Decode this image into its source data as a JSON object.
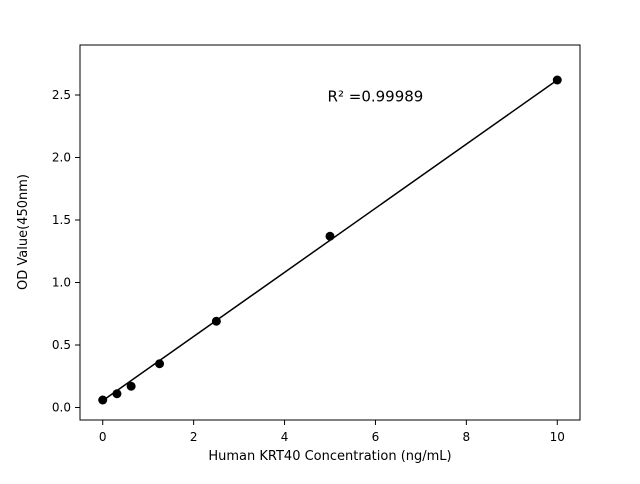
{
  "page": {
    "background": "#ffffff"
  },
  "chart_data": {
    "type": "scatter",
    "title": "",
    "xlabel": "Human KRT40 Concentration (ng/mL)",
    "ylabel": "OD Value(450nm)",
    "annotation": {
      "text": "R² =0.99989",
      "x": 6.0,
      "y": 2.45
    },
    "x": [
      0,
      0.313,
      0.625,
      1.25,
      2.5,
      5,
      10
    ],
    "y": [
      0.06,
      0.11,
      0.17,
      0.35,
      0.69,
      1.37,
      2.62
    ],
    "fit_line": {
      "x": [
        0,
        10
      ],
      "y": [
        0.055,
        2.62
      ]
    },
    "xlim": [
      -0.5,
      10.5
    ],
    "ylim": [
      -0.1,
      2.9
    ],
    "x_ticks": [
      {
        "value": 0,
        "label": "0"
      },
      {
        "value": 2,
        "label": "2"
      },
      {
        "value": 4,
        "label": "4"
      },
      {
        "value": 6,
        "label": "6"
      },
      {
        "value": 8,
        "label": "8"
      },
      {
        "value": 10,
        "label": "10"
      }
    ],
    "y_ticks": [
      {
        "value": 0.0,
        "label": "0.0"
      },
      {
        "value": 0.5,
        "label": "0.5"
      },
      {
        "value": 1.0,
        "label": "1.0"
      },
      {
        "value": 1.5,
        "label": "1.5"
      },
      {
        "value": 2.0,
        "label": "2.0"
      },
      {
        "value": 2.5,
        "label": "2.5"
      }
    ],
    "marker_color": "#000000",
    "line_color": "#000000",
    "grid": false,
    "legend": "none"
  }
}
